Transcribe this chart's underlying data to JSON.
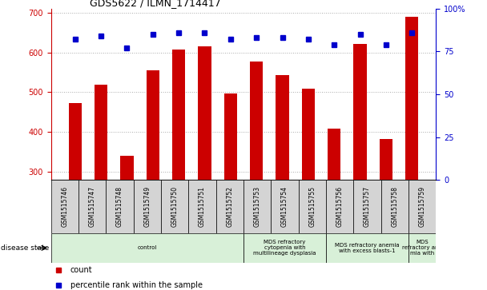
{
  "title": "GDS5622 / ILMN_1714417",
  "samples": [
    "GSM1515746",
    "GSM1515747",
    "GSM1515748",
    "GSM1515749",
    "GSM1515750",
    "GSM1515751",
    "GSM1515752",
    "GSM1515753",
    "GSM1515754",
    "GSM1515755",
    "GSM1515756",
    "GSM1515757",
    "GSM1515758",
    "GSM1515759"
  ],
  "counts": [
    472,
    520,
    340,
    555,
    608,
    615,
    496,
    578,
    543,
    509,
    408,
    622,
    383,
    690
  ],
  "percentile_ranks": [
    82,
    84,
    77,
    85,
    86,
    86,
    82,
    83,
    83,
    82,
    79,
    85,
    79,
    86
  ],
  "ylim_left": [
    280,
    710
  ],
  "ylim_right": [
    0,
    100
  ],
  "yticks_left": [
    300,
    400,
    500,
    600,
    700
  ],
  "yticks_right": [
    0,
    25,
    50,
    75,
    100
  ],
  "bar_color": "#cc0000",
  "dot_color": "#0000cc",
  "grid_color": "#aaaaaa",
  "disease_groups": [
    {
      "label": "control",
      "start": 0,
      "end": 7,
      "color": "#d8f0d8"
    },
    {
      "label": "MDS refractory\ncytopenia with\nmultilineage dysplasia",
      "start": 7,
      "end": 10,
      "color": "#d8f0d8"
    },
    {
      "label": "MDS refractory anemia\nwith excess blasts-1",
      "start": 10,
      "end": 13,
      "color": "#d8f0d8"
    },
    {
      "label": "MDS\nrefractory ane\nmia with",
      "start": 13,
      "end": 14,
      "color": "#d8f0d8"
    }
  ],
  "disease_state_label": "disease state",
  "legend_count_label": "count",
  "legend_percentile_label": "percentile rank within the sample",
  "bar_color_legend": "#cc0000",
  "dot_color_legend": "#0000cc",
  "right_axis_color": "#0000cc",
  "tick_label_color_left": "#cc0000",
  "tick_label_color_right": "#0000cc",
  "bar_bottom": 280,
  "sample_box_color": "#d4d4d4",
  "plot_bg": "#ffffff"
}
